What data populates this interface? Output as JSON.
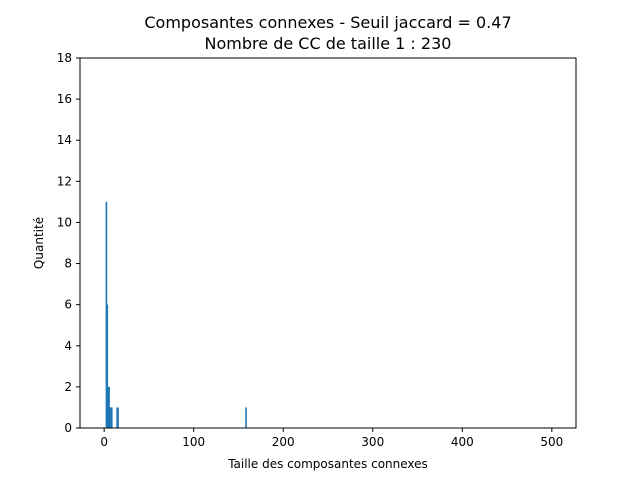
{
  "chart_data": {
    "type": "bar",
    "title_line1": "Composantes connexes - Seuil jaccard = 0.47",
    "title_line2": "Nombre de CC de taille 1 : 230",
    "xlabel": "Taille des composantes connexes",
    "ylabel": "Quantité",
    "xlim": [
      -27,
      527
    ],
    "ylim": [
      0,
      18
    ],
    "xticks": [
      0,
      100,
      200,
      300,
      400,
      500
    ],
    "yticks": [
      0,
      2,
      4,
      6,
      8,
      10,
      12,
      14,
      16,
      18
    ],
    "bar_color": "#1f77b4",
    "grid": false,
    "points": [
      {
        "x": 2,
        "y": 11
      },
      {
        "x": 3,
        "y": 6
      },
      {
        "x": 4,
        "y": 2
      },
      {
        "x": 5,
        "y": 2
      },
      {
        "x": 6,
        "y": 1
      },
      {
        "x": 7,
        "y": 1
      },
      {
        "x": 8,
        "y": 1
      },
      {
        "x": 14,
        "y": 1
      },
      {
        "x": 15,
        "y": 1
      },
      {
        "x": 158,
        "y": 1
      }
    ]
  }
}
